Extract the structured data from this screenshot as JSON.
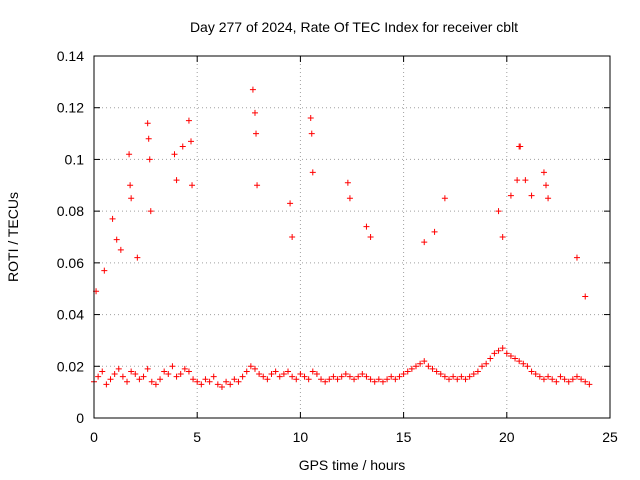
{
  "chart_data": {
    "type": "scatter",
    "title": "Day 277 of 2024, Rate Of TEC Index for receiver cblt",
    "xlabel": "GPS time / hours",
    "ylabel": "ROTI / TECUs",
    "xlim": [
      0,
      25
    ],
    "ylim": [
      0,
      0.14
    ],
    "x_ticks": [
      0,
      5,
      10,
      15,
      20,
      25
    ],
    "x_tick_labels": [
      "0",
      "5",
      "10",
      "15",
      "20",
      "25"
    ],
    "y_ticks": [
      0,
      0.02,
      0.04,
      0.06,
      0.08,
      0.1,
      0.12,
      0.14
    ],
    "y_tick_labels": [
      "0",
      "0.02",
      "0.04",
      "0.06",
      "0.08",
      "0.1",
      "0.12",
      "0.14"
    ],
    "grid": true,
    "marker": "+",
    "marker_color": "#ff0000",
    "series": [
      {
        "name": "ROTI",
        "x": [
          0.0,
          0.2,
          0.4,
          0.6,
          0.8,
          1.0,
          1.2,
          1.4,
          1.6,
          1.8,
          2.0,
          2.2,
          2.4,
          2.6,
          2.8,
          3.0,
          3.2,
          3.4,
          3.6,
          3.8,
          4.0,
          4.2,
          4.4,
          4.6,
          4.8,
          5.0,
          5.2,
          5.4,
          5.6,
          5.8,
          6.0,
          6.2,
          6.4,
          6.6,
          6.8,
          7.0,
          7.2,
          7.4,
          7.6,
          7.8,
          8.0,
          8.2,
          8.4,
          8.6,
          8.8,
          9.0,
          9.2,
          9.4,
          9.6,
          9.8,
          10.0,
          10.2,
          10.4,
          10.6,
          10.8,
          11.0,
          11.2,
          11.4,
          11.6,
          11.8,
          12.0,
          12.2,
          12.4,
          12.6,
          12.8,
          13.0,
          13.2,
          13.4,
          13.6,
          13.8,
          14.0,
          14.2,
          14.4,
          14.6,
          14.8,
          15.0,
          15.2,
          15.4,
          15.6,
          15.8,
          16.0,
          16.2,
          16.4,
          16.6,
          16.8,
          17.0,
          17.2,
          17.4,
          17.6,
          17.8,
          18.0,
          18.2,
          18.4,
          18.6,
          18.8,
          19.0,
          19.2,
          19.4,
          19.6,
          19.8,
          20.0,
          20.2,
          20.4,
          20.6,
          20.8,
          21.0,
          21.2,
          21.4,
          21.6,
          21.8,
          22.0,
          22.2,
          22.4,
          22.6,
          22.8,
          23.0,
          23.2,
          23.4,
          23.6,
          23.8,
          24.0,
          0.1,
          0.5,
          0.9,
          1.1,
          1.3,
          1.7,
          1.75,
          1.8,
          2.1,
          2.6,
          2.65,
          2.7,
          2.75,
          3.9,
          4.0,
          4.3,
          4.6,
          4.7,
          4.75,
          7.7,
          7.8,
          7.85,
          7.9,
          9.5,
          9.6,
          10.5,
          10.55,
          10.6,
          12.3,
          12.4,
          13.2,
          13.4,
          16.0,
          16.5,
          17.0,
          19.6,
          19.8,
          20.2,
          20.5,
          20.6,
          20.65,
          20.9,
          21.2,
          21.8,
          21.9,
          22.0,
          23.4,
          23.8
        ],
        "y": [
          0.014,
          0.016,
          0.018,
          0.013,
          0.015,
          0.017,
          0.019,
          0.016,
          0.014,
          0.018,
          0.017,
          0.015,
          0.016,
          0.019,
          0.014,
          0.013,
          0.015,
          0.018,
          0.017,
          0.02,
          0.016,
          0.017,
          0.019,
          0.018,
          0.015,
          0.014,
          0.013,
          0.015,
          0.014,
          0.016,
          0.013,
          0.012,
          0.014,
          0.013,
          0.015,
          0.014,
          0.016,
          0.018,
          0.02,
          0.019,
          0.017,
          0.016,
          0.015,
          0.017,
          0.018,
          0.016,
          0.017,
          0.018,
          0.016,
          0.015,
          0.017,
          0.016,
          0.015,
          0.018,
          0.017,
          0.015,
          0.014,
          0.015,
          0.016,
          0.015,
          0.016,
          0.017,
          0.016,
          0.015,
          0.016,
          0.017,
          0.016,
          0.015,
          0.014,
          0.015,
          0.014,
          0.015,
          0.016,
          0.015,
          0.016,
          0.017,
          0.018,
          0.019,
          0.02,
          0.021,
          0.022,
          0.02,
          0.019,
          0.018,
          0.017,
          0.016,
          0.015,
          0.016,
          0.015,
          0.016,
          0.015,
          0.016,
          0.017,
          0.018,
          0.02,
          0.021,
          0.023,
          0.025,
          0.026,
          0.027,
          0.025,
          0.024,
          0.023,
          0.022,
          0.021,
          0.02,
          0.018,
          0.017,
          0.016,
          0.015,
          0.016,
          0.015,
          0.014,
          0.016,
          0.015,
          0.014,
          0.015,
          0.016,
          0.015,
          0.014,
          0.013,
          0.049,
          0.057,
          0.077,
          0.069,
          0.065,
          0.102,
          0.09,
          0.085,
          0.062,
          0.114,
          0.108,
          0.1,
          0.08,
          0.102,
          0.092,
          0.105,
          0.115,
          0.107,
          0.09,
          0.127,
          0.118,
          0.11,
          0.09,
          0.083,
          0.07,
          0.116,
          0.11,
          0.095,
          0.091,
          0.085,
          0.074,
          0.07,
          0.068,
          0.072,
          0.085,
          0.08,
          0.07,
          0.086,
          0.092,
          0.105,
          0.105,
          0.092,
          0.086,
          0.095,
          0.09,
          0.085,
          0.062,
          0.047
        ]
      }
    ]
  }
}
